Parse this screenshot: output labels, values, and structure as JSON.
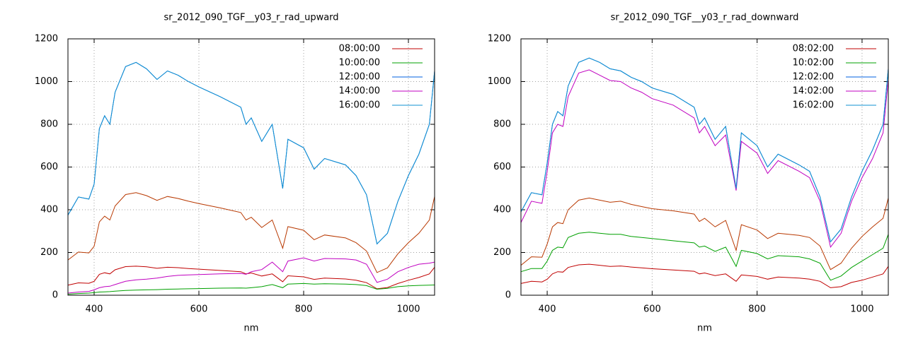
{
  "chart_data": [
    {
      "type": "line",
      "title": "sr_2012_090_TGF__y03_r_rad_upward",
      "xlabel": "nm",
      "x": [
        350,
        370,
        390,
        400,
        410,
        420,
        430,
        440,
        460,
        480,
        500,
        520,
        540,
        560,
        580,
        600,
        640,
        680,
        690,
        700,
        720,
        740,
        760,
        770,
        800,
        820,
        840,
        880,
        900,
        920,
        940,
        960,
        980,
        1000,
        1020,
        1040,
        1050
      ],
      "xlim": [
        350,
        1050
      ],
      "xticks": [
        400,
        600,
        800,
        1000
      ],
      "ylim": [
        0,
        1200
      ],
      "yticks": [
        0,
        200,
        400,
        600,
        800,
        1000,
        1200
      ],
      "grid": true,
      "legend": "top-right",
      "series": [
        {
          "name": "08:00:00",
          "color": "#c00000",
          "values": [
            47,
            58,
            56,
            65,
            98,
            105,
            100,
            119,
            134,
            136,
            133,
            126,
            131,
            129,
            125,
            122,
            116,
            110,
            100,
            104,
            90,
            100,
            63,
            91,
            86,
            74,
            80,
            76,
            70,
            59,
            30,
            36,
            55,
            70,
            83,
            100,
            131
          ]
        },
        {
          "name": "10:00:00",
          "color": "#00a000",
          "values": [
            5,
            8,
            10,
            12,
            15,
            16,
            17,
            19,
            22,
            24,
            25,
            26,
            28,
            29,
            30,
            31,
            33,
            34,
            33,
            35,
            40,
            50,
            35,
            52,
            55,
            52,
            54,
            52,
            50,
            45,
            28,
            32,
            40,
            44,
            46,
            47,
            48
          ]
        },
        {
          "name": "12:00:00",
          "color": "#0060e0",
          "values": [
            375,
            460,
            450,
            520,
            780,
            840,
            800,
            950,
            1070,
            1090,
            1060,
            1010,
            1050,
            1030,
            1000,
            975,
            930,
            880,
            800,
            830,
            720,
            800,
            500,
            730,
            690,
            590,
            640,
            610,
            560,
            470,
            240,
            290,
            440,
            560,
            660,
            800,
            1050
          ]
        },
        {
          "name": "14:00:00",
          "color": "#c000c0",
          "values": [
            10,
            15,
            18,
            25,
            35,
            40,
            42,
            50,
            65,
            72,
            75,
            80,
            88,
            93,
            95,
            97,
            100,
            102,
            98,
            110,
            120,
            155,
            110,
            160,
            175,
            160,
            172,
            170,
            165,
            145,
            60,
            75,
            110,
            130,
            145,
            150,
            155
          ]
        },
        {
          "name": "16:00:00",
          "color": "#1090d0",
          "values": [
            375,
            460,
            450,
            520,
            780,
            840,
            800,
            950,
            1070,
            1090,
            1060,
            1010,
            1050,
            1030,
            1000,
            975,
            930,
            880,
            800,
            830,
            720,
            800,
            500,
            730,
            690,
            590,
            640,
            610,
            560,
            470,
            240,
            290,
            440,
            560,
            660,
            800,
            1050
          ]
        },
        {
          "color": "#b83800",
          "values": [
            165,
            202,
            198,
            229,
            343,
            370,
            352,
            418,
            471,
            480,
            466,
            444,
            462,
            453,
            440,
            429,
            409,
            387,
            352,
            365,
            317,
            352,
            220,
            321,
            304,
            260,
            282,
            268,
            246,
            207,
            106,
            128,
            194,
            246,
            290,
            352,
            462
          ]
        }
      ]
    },
    {
      "type": "line",
      "title": "sr_2012_090_TGF__y03_r_rad_downward",
      "xlabel": "nm",
      "x": [
        350,
        370,
        390,
        400,
        410,
        420,
        430,
        440,
        460,
        480,
        500,
        520,
        540,
        560,
        580,
        600,
        640,
        680,
        690,
        700,
        720,
        740,
        760,
        770,
        800,
        820,
        840,
        880,
        900,
        920,
        940,
        960,
        980,
        1000,
        1020,
        1040,
        1050
      ],
      "xlim": [
        350,
        1050
      ],
      "xticks": [
        400,
        600,
        800,
        1000
      ],
      "ylim": [
        0,
        1200
      ],
      "yticks": [
        0,
        200,
        400,
        600,
        800,
        1000,
        1200
      ],
      "grid": true,
      "legend": "top-right",
      "series": [
        {
          "name": "08:02:00",
          "color": "#c00000",
          "values": [
            55,
            65,
            62,
            75,
            100,
            110,
            108,
            130,
            142,
            145,
            140,
            135,
            137,
            132,
            128,
            124,
            118,
            112,
            100,
            104,
            92,
            100,
            65,
            95,
            88,
            75,
            85,
            80,
            75,
            65,
            35,
            40,
            60,
            70,
            85,
            100,
            135
          ]
        },
        {
          "name": "10:02:00",
          "color": "#00a000",
          "values": [
            110,
            125,
            125,
            160,
            210,
            225,
            222,
            270,
            290,
            295,
            290,
            285,
            285,
            275,
            270,
            265,
            255,
            245,
            225,
            230,
            205,
            225,
            135,
            210,
            195,
            170,
            185,
            180,
            170,
            150,
            70,
            90,
            130,
            160,
            190,
            220,
            285
          ]
        },
        {
          "name": "12:02:00",
          "color": "#0060e0",
          "values": [
            390,
            480,
            470,
            620,
            800,
            860,
            840,
            980,
            1090,
            1110,
            1090,
            1060,
            1050,
            1020,
            1000,
            970,
            940,
            880,
            800,
            830,
            730,
            790,
            500,
            760,
            700,
            600,
            660,
            610,
            580,
            460,
            250,
            310,
            460,
            580,
            680,
            800,
            1060
          ]
        },
        {
          "name": "14:02:00",
          "color": "#c000c0",
          "values": [
            340,
            440,
            430,
            580,
            760,
            800,
            790,
            930,
            1040,
            1055,
            1030,
            1005,
            1000,
            970,
            950,
            920,
            890,
            830,
            760,
            790,
            700,
            750,
            490,
            720,
            665,
            570,
            630,
            580,
            550,
            440,
            225,
            290,
            440,
            550,
            640,
            760,
            1010
          ]
        },
        {
          "name": "16:02:00",
          "color": "#1090d0",
          "values": [
            390,
            480,
            470,
            620,
            800,
            860,
            840,
            980,
            1090,
            1110,
            1090,
            1060,
            1050,
            1020,
            1000,
            970,
            940,
            880,
            800,
            830,
            730,
            790,
            500,
            760,
            700,
            600,
            660,
            610,
            580,
            460,
            250,
            310,
            460,
            580,
            680,
            800,
            1060
          ]
        },
        {
          "color": "#b83800",
          "values": [
            140,
            180,
            178,
            240,
            320,
            340,
            335,
            400,
            445,
            455,
            445,
            435,
            440,
            425,
            415,
            405,
            395,
            380,
            345,
            360,
            320,
            350,
            210,
            330,
            305,
            265,
            290,
            280,
            270,
            230,
            120,
            150,
            220,
            275,
            320,
            360,
            455
          ]
        }
      ]
    }
  ]
}
